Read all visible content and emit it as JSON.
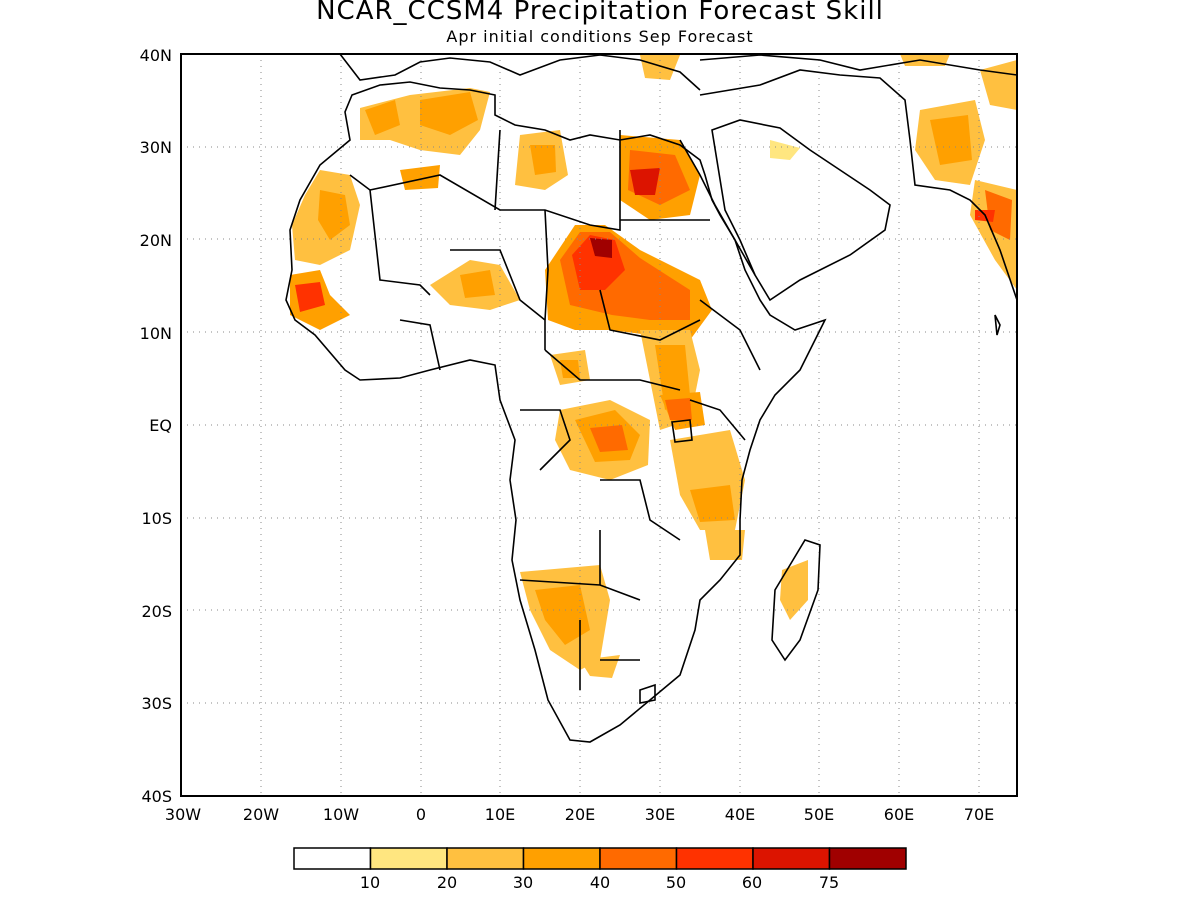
{
  "title": "NCAR_CCSM4 Precipitation Forecast Skill",
  "subtitle": "Apr initial conditions  Sep Forecast",
  "axes": {
    "lon_ticks": [
      "30W",
      "20W",
      "10W",
      "0",
      "10E",
      "20E",
      "30E",
      "40E",
      "50E",
      "60E",
      "70E"
    ],
    "lat_ticks": [
      "40N",
      "30N",
      "20N",
      "10N",
      "EQ",
      "10S",
      "20S",
      "30S",
      "40S"
    ],
    "grid": "dotted"
  },
  "legend": {
    "labels": [
      "10",
      "20",
      "30",
      "40",
      "50",
      "60",
      "75"
    ],
    "colors": [
      "#ffffff",
      "#ffe680",
      "#ffc040",
      "#ffa000",
      "#ff6a00",
      "#ff3200",
      "#dc1400",
      "#a00000"
    ]
  },
  "colors": {
    "land_outline": "#000000",
    "background": "#ffffff"
  }
}
